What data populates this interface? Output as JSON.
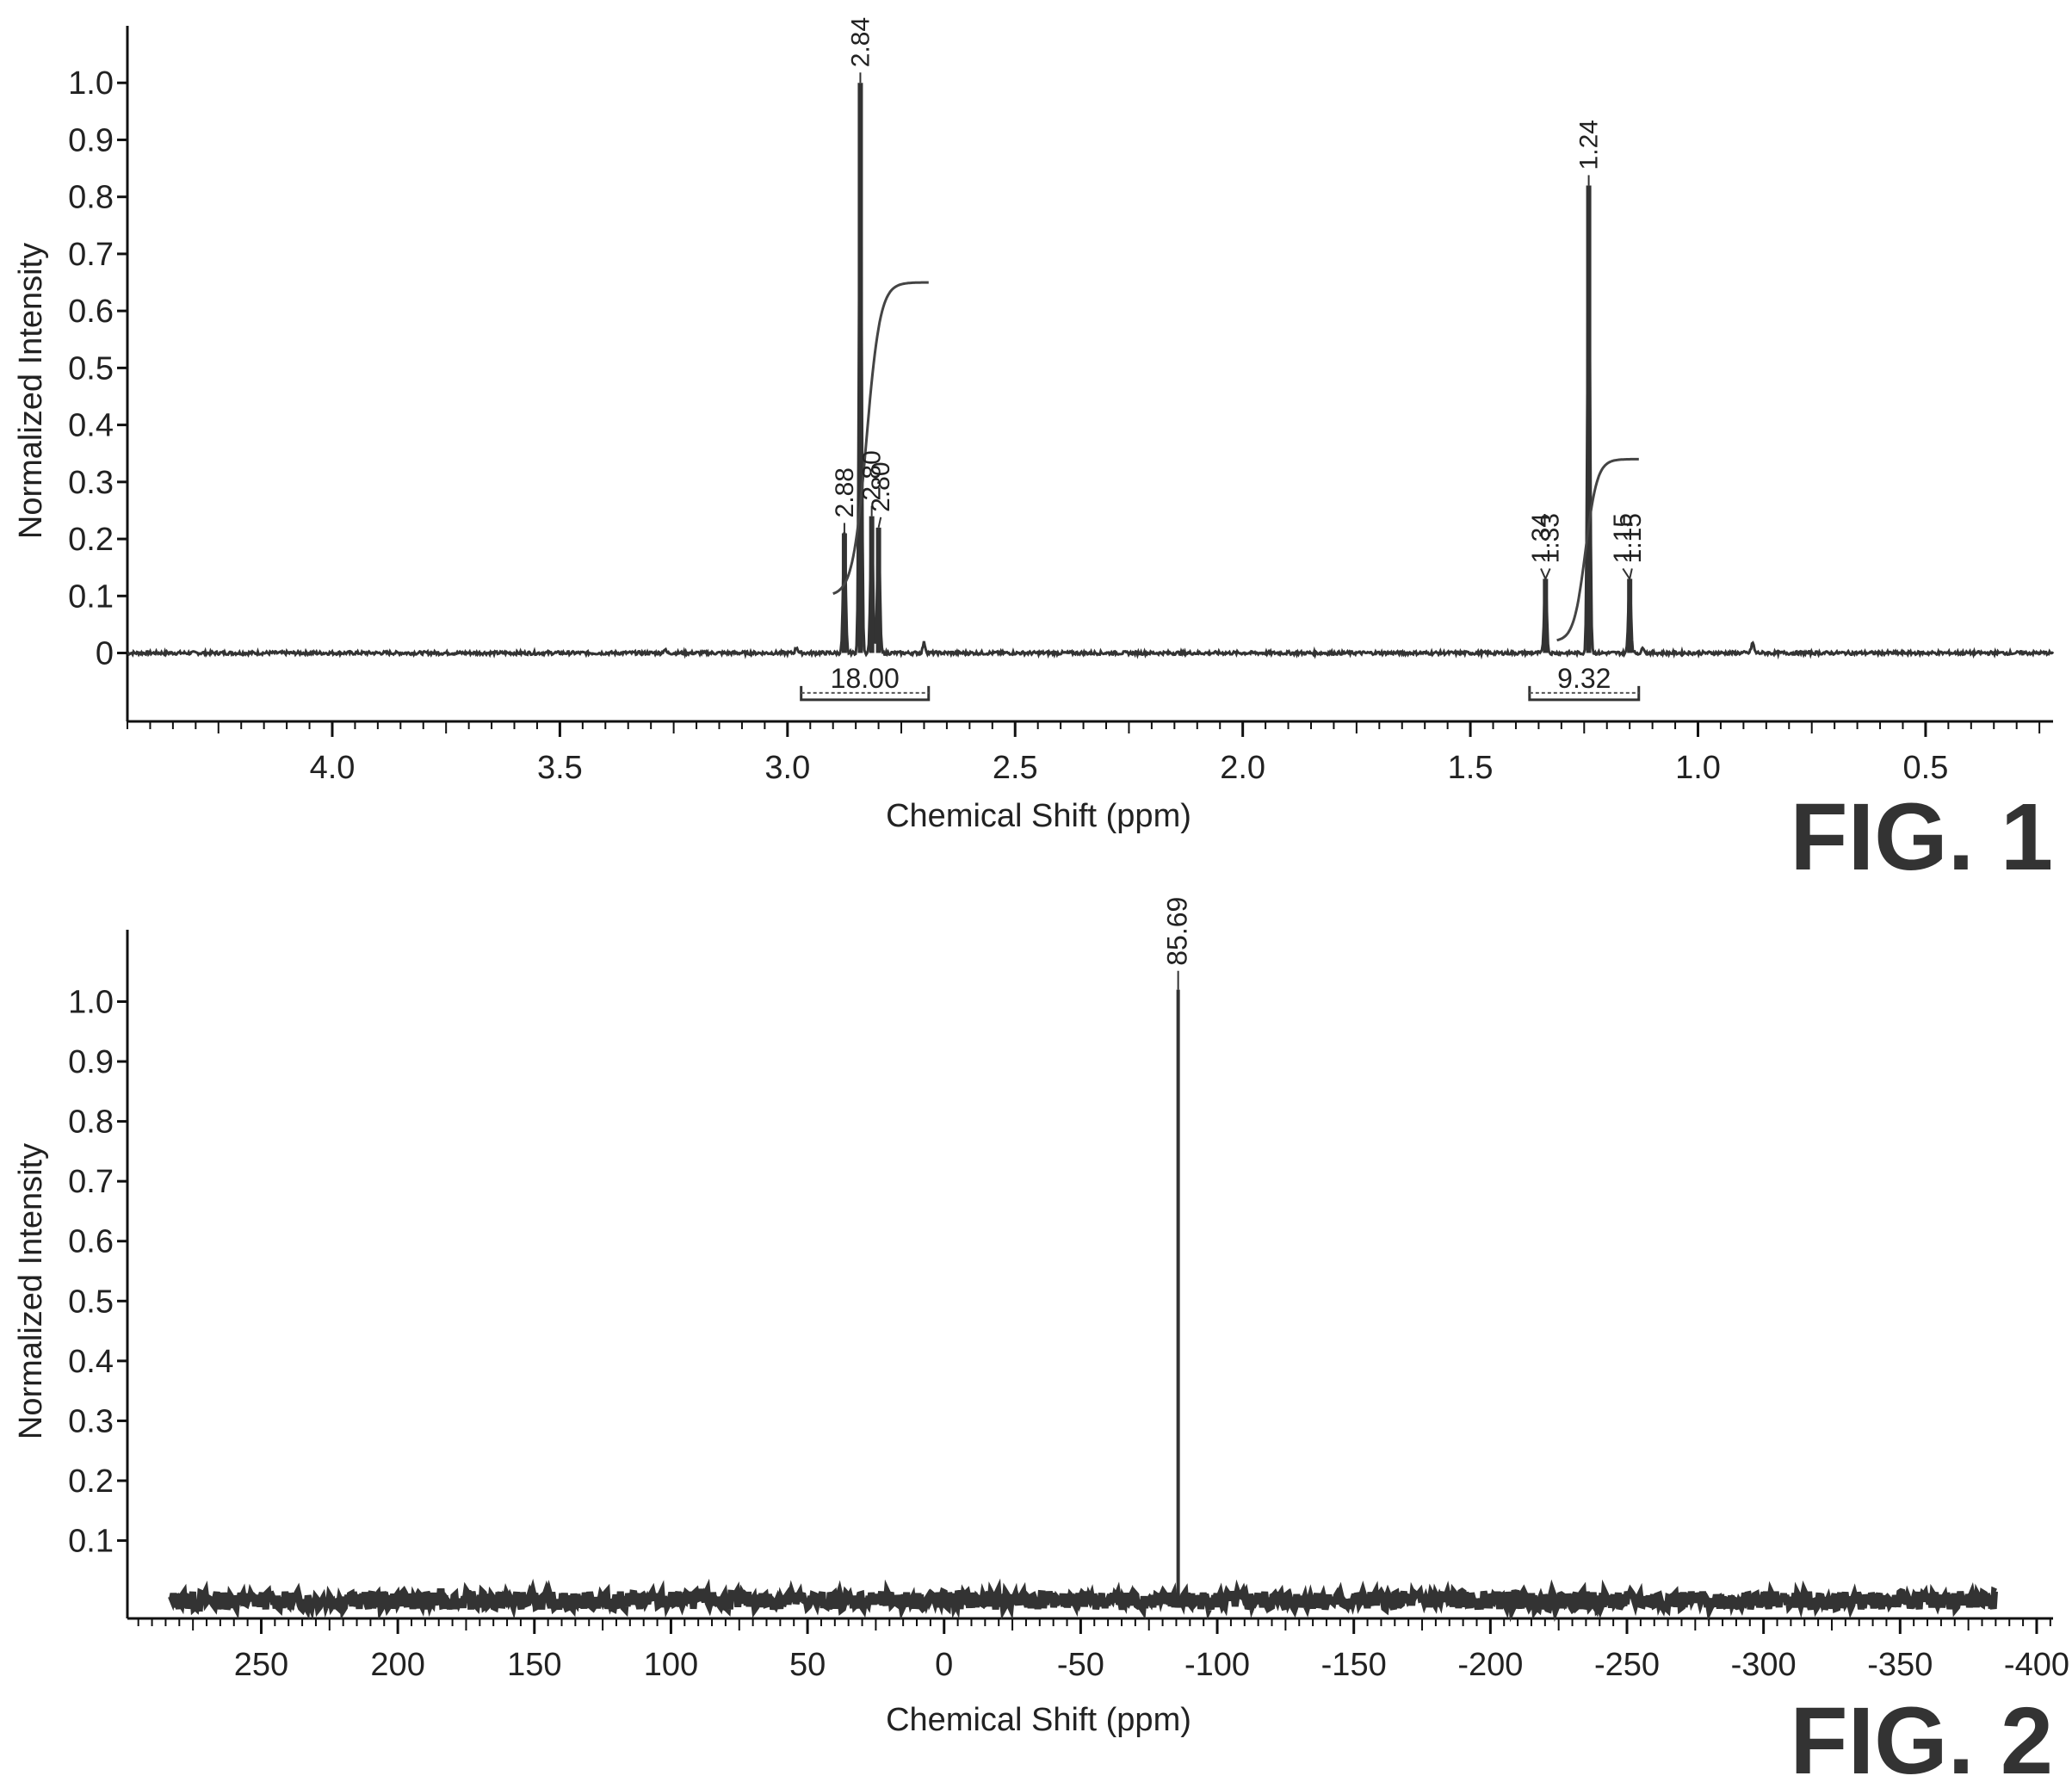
{
  "chart_data": [
    {
      "figure_label": "FIG. 1",
      "type": "line",
      "xlabel": "Chemical Shift (ppm)",
      "ylabel": "Normalized Intensity",
      "xlim": [
        4.45,
        0.22
      ],
      "ylim": [
        -0.12,
        1.1
      ],
      "x_ticks": [
        4.0,
        3.5,
        3.0,
        2.5,
        2.0,
        1.5,
        1.0,
        0.5
      ],
      "x_tick_labels": [
        "4.0",
        "3.5",
        "3.0",
        "2.5",
        "2.0",
        "1.5",
        "1.0",
        "0.5"
      ],
      "y_ticks": [
        0,
        0.1,
        0.2,
        0.3,
        0.4,
        0.5,
        0.6,
        0.7,
        0.8,
        0.9,
        1.0
      ],
      "y_tick_labels": [
        "0",
        "0.1",
        "0.2",
        "0.3",
        "0.4",
        "0.5",
        "0.6",
        "0.7",
        "0.8",
        "0.9",
        "1.0"
      ],
      "peaks": [
        {
          "x": 2.875,
          "y": 0.21
        },
        {
          "x": 2.84,
          "y": 1.0
        },
        {
          "x": 2.815,
          "y": 0.24
        },
        {
          "x": 2.8,
          "y": 0.22
        },
        {
          "x": 1.335,
          "y": 0.13
        },
        {
          "x": 1.24,
          "y": 0.82
        },
        {
          "x": 1.15,
          "y": 0.13
        },
        {
          "x": 3.27,
          "y": 0.006
        },
        {
          "x": 2.98,
          "y": 0.01
        },
        {
          "x": 2.7,
          "y": 0.018
        },
        {
          "x": 1.12,
          "y": 0.01
        },
        {
          "x": 0.88,
          "y": 0.018
        }
      ],
      "peak_labels": [
        {
          "x": 2.875,
          "label": "2.88"
        },
        {
          "x": 2.84,
          "label": "2.84"
        },
        {
          "x": 2.815,
          "label": "2.80"
        },
        {
          "x": 2.795,
          "label": "2.80"
        },
        {
          "x": 1.345,
          "label": "1.34"
        },
        {
          "x": 1.325,
          "label": "1.33"
        },
        {
          "x": 1.24,
          "label": "1.24"
        },
        {
          "x": 1.165,
          "label": "1.15"
        },
        {
          "x": 1.145,
          "label": "1.15"
        }
      ],
      "integrals": [
        {
          "from": 2.97,
          "to": 2.69,
          "value": "18.00",
          "curve_start_y": 0.1,
          "curve_end_y": 0.65
        },
        {
          "from": 1.37,
          "to": 1.13,
          "value": "9.32",
          "curve_start_y": 0.02,
          "curve_end_y": 0.34
        }
      ],
      "grid": false
    },
    {
      "figure_label": "FIG. 2",
      "type": "line",
      "xlabel": "Chemical Shift (ppm)",
      "ylabel": "Normalized Intensity",
      "xlim": [
        299,
        -406
      ],
      "ylim": [
        -0.03,
        1.12
      ],
      "x_ticks": [
        250,
        200,
        150,
        100,
        50,
        0,
        -50,
        -100,
        -150,
        -200,
        -250,
        -300,
        -350,
        -400
      ],
      "x_tick_labels": [
        "250",
        "200",
        "150",
        "100",
        "50",
        "0",
        "-50",
        "-100",
        "-150",
        "-200",
        "-250",
        "-300",
        "-350",
        "-400"
      ],
      "y_ticks": [
        0.1,
        0.2,
        0.3,
        0.4,
        0.5,
        0.6,
        0.7,
        0.8,
        0.9,
        1.0
      ],
      "y_tick_labels": [
        "0.1",
        "0.2",
        "0.3",
        "0.4",
        "0.5",
        "0.6",
        "0.7",
        "0.8",
        "0.9",
        "1.0"
      ],
      "noise_range": [
        283,
        -385
      ],
      "peaks": [
        {
          "x": -85.69,
          "y": 1.02
        }
      ],
      "peak_labels": [
        {
          "x": -85.69,
          "label": "85.69"
        }
      ],
      "grid": false
    }
  ]
}
